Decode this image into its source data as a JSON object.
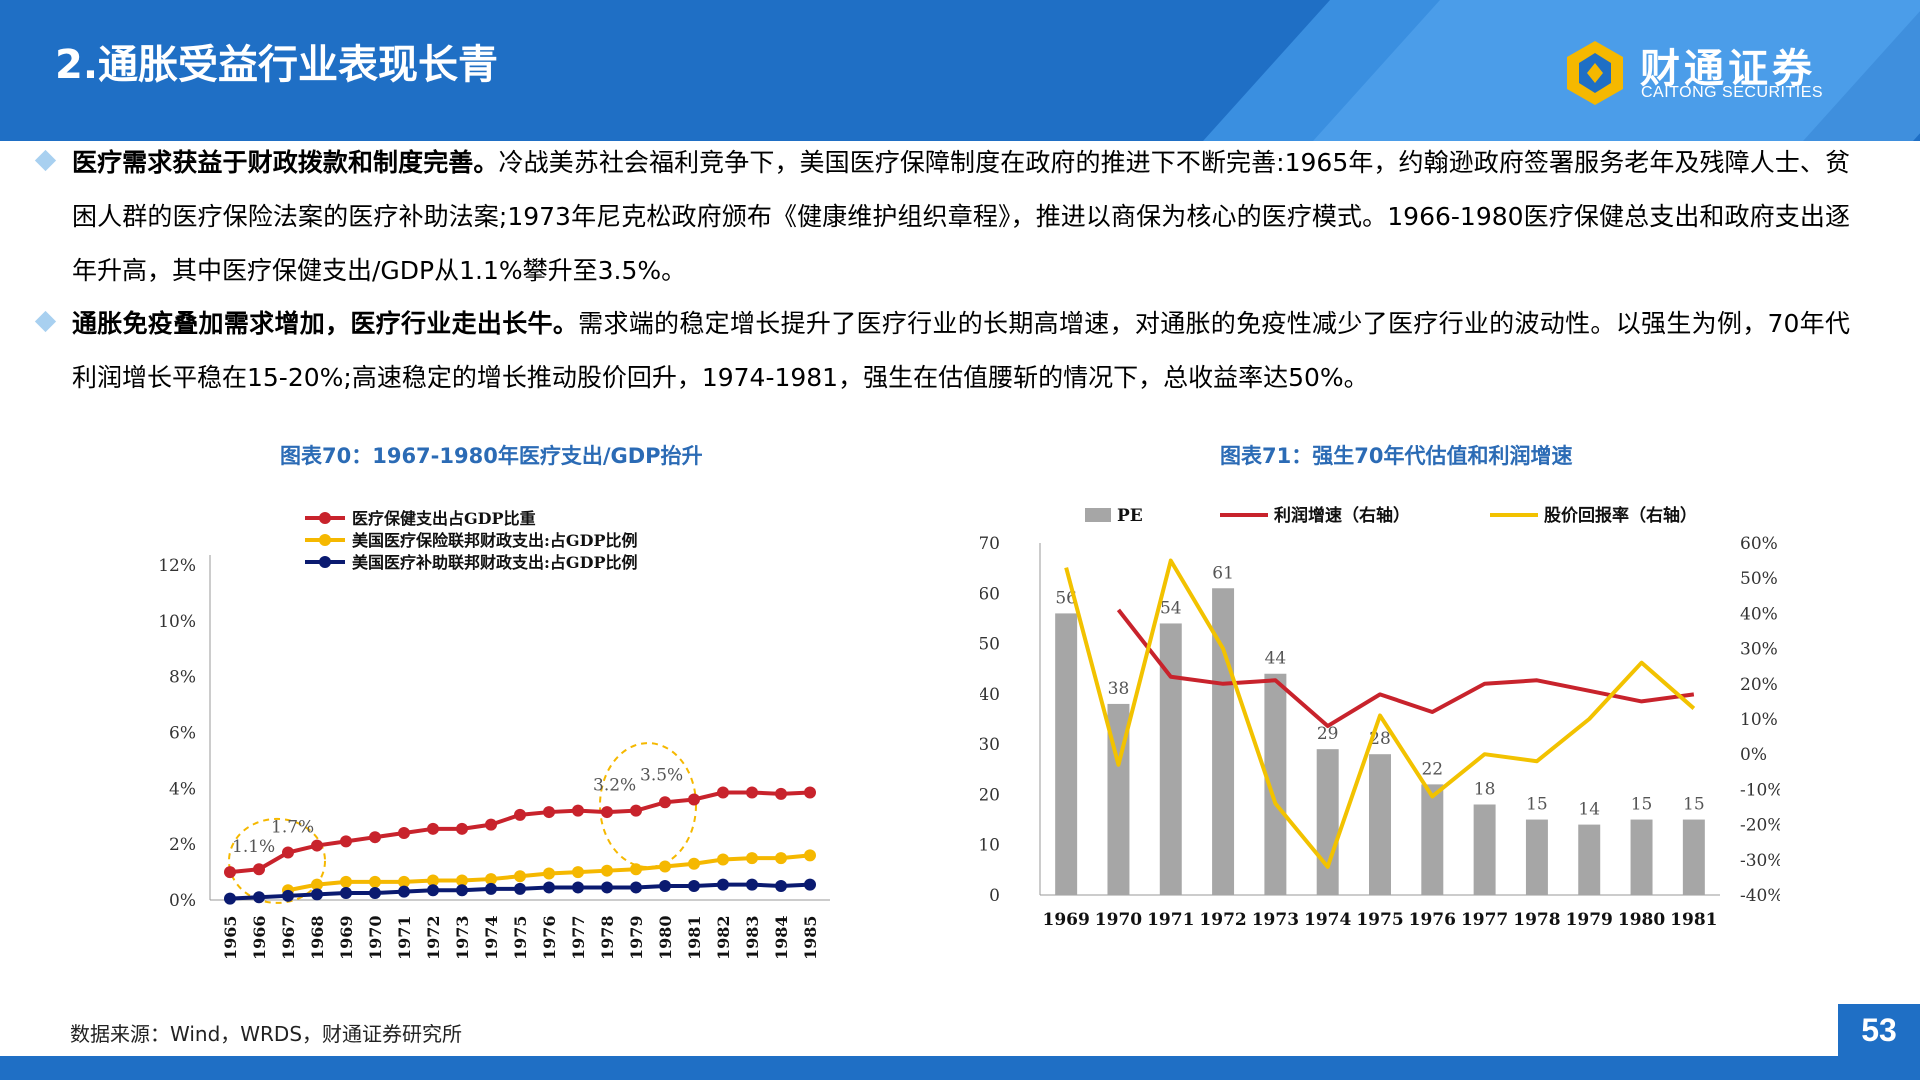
{
  "header": {
    "title": "2.通胀受益行业表现长青",
    "logo_name": "财通证券",
    "logo_sub": "CAITONG SECURITIES"
  },
  "paragraphs": [
    {
      "bold": "医疗需求获益于财政拨款和制度完善。",
      "text": "冷战美苏社会福利竞争下，美国医疗保障制度在政府的推进下不断完善:1965年，约翰逊政府签署服务老年及残障人士、贫困人群的医疗保险法案的医疗补助法案;1973年尼克松政府颁布《健康维护组织章程》，推进以商保为核心的医疗模式。1966-1980医疗保健总支出和政府支出逐年升高，其中医疗保健支出/GDP从1.1%攀升至3.5%。"
    },
    {
      "bold": "通胀免疫叠加需求增加，医疗行业走出长牛。",
      "text": "需求端的稳定增长提升了医疗行业的长期高增速，对通胀的免疫性减少了医疗行业的波动性。以强生为例，70年代利润增长平稳在15-20%;高速稳定的增长推动股价回升，1974-1981，强生在估值腰斩的情况下，总收益率达50%。"
    }
  ],
  "figures": {
    "left_title": "图表70：1967-1980年医疗支出/GDP抬升",
    "right_title": "图表71：强生70年代估值和利润增速"
  },
  "footer": {
    "source": "数据来源：Wind，WRDS，财通证券研究所",
    "page_number": "53"
  },
  "colors": {
    "brand_blue": "#1f6fc5",
    "red": "#c8232c",
    "yellow": "#f5b800",
    "navy": "#0a1a70",
    "gray_bar": "#a6a6a6",
    "line_yellow": "#f2c200"
  },
  "chart_data": [
    {
      "type": "line",
      "x": [
        "1965",
        "1966",
        "1967",
        "1968",
        "1969",
        "1970",
        "1971",
        "1972",
        "1973",
        "1974",
        "1975",
        "1976",
        "1977",
        "1978",
        "1979",
        "1980",
        "1981",
        "1982",
        "1983",
        "1984",
        "1985"
      ],
      "series": [
        {
          "name": "医疗保健支出占GDP比重",
          "color": "#c8232c",
          "values": [
            1.0,
            1.1,
            1.7,
            1.95,
            2.1,
            2.25,
            2.4,
            2.55,
            2.55,
            2.7,
            3.05,
            3.15,
            3.2,
            3.15,
            3.2,
            3.5,
            3.6,
            3.85,
            3.85,
            3.8,
            3.85
          ]
        },
        {
          "name": "美国医疗保险联邦财政支出:占GDP比例",
          "color": "#f5b800",
          "values": [
            null,
            null,
            0.35,
            0.55,
            0.65,
            0.65,
            0.65,
            0.7,
            0.7,
            0.75,
            0.85,
            0.95,
            1.0,
            1.05,
            1.1,
            1.2,
            1.3,
            1.45,
            1.5,
            1.5,
            1.6
          ]
        },
        {
          "name": "美国医疗补助联邦财政支出:占GDP比例",
          "color": "#0a1a70",
          "values": [
            0.05,
            0.1,
            0.15,
            0.2,
            0.25,
            0.25,
            0.3,
            0.35,
            0.35,
            0.4,
            0.4,
            0.45,
            0.45,
            0.45,
            0.45,
            0.5,
            0.5,
            0.55,
            0.55,
            0.5,
            0.55
          ]
        }
      ],
      "yticks": [
        "0%",
        "2%",
        "4%",
        "6%",
        "8%",
        "10%",
        "12%"
      ],
      "ylim": [
        0,
        12
      ],
      "annotations": [
        "1.1%",
        "1.7%",
        "3.2%",
        "3.5%"
      ],
      "legend": "top-left"
    },
    {
      "type": "bar",
      "categories": [
        "1969",
        "1970",
        "1971",
        "1972",
        "1973",
        "1974",
        "1975",
        "1976",
        "1977",
        "1978",
        "1979",
        "1980",
        "1981"
      ],
      "series": [
        {
          "name": "PE",
          "axis": "left",
          "color": "#a6a6a6",
          "values": [
            56,
            38,
            54,
            61,
            44,
            29,
            28,
            22,
            18,
            15,
            14,
            15,
            15
          ]
        },
        {
          "name": "利润增速（右轴）",
          "axis": "right",
          "type": "line",
          "color": "#c8232c",
          "values": [
            null,
            41,
            22,
            20,
            21,
            8,
            17,
            12,
            20,
            21,
            18,
            15,
            17
          ]
        },
        {
          "name": "股价回报率（右轴）",
          "axis": "right",
          "type": "line",
          "color": "#f2c200",
          "values": [
            53,
            -3,
            55,
            30,
            -14,
            -32,
            11,
            -12,
            0,
            -2,
            10,
            26,
            13
          ]
        }
      ],
      "ylim_left": [
        0,
        70
      ],
      "yticks_left": [
        "0",
        "10",
        "20",
        "30",
        "40",
        "50",
        "60",
        "70"
      ],
      "ylim_right": [
        -40,
        60
      ],
      "yticks_right": [
        "-40%",
        "-30%",
        "-20%",
        "-10%",
        "0%",
        "10%",
        "20%",
        "30%",
        "40%",
        "50%",
        "60%"
      ],
      "legend": "top"
    }
  ]
}
